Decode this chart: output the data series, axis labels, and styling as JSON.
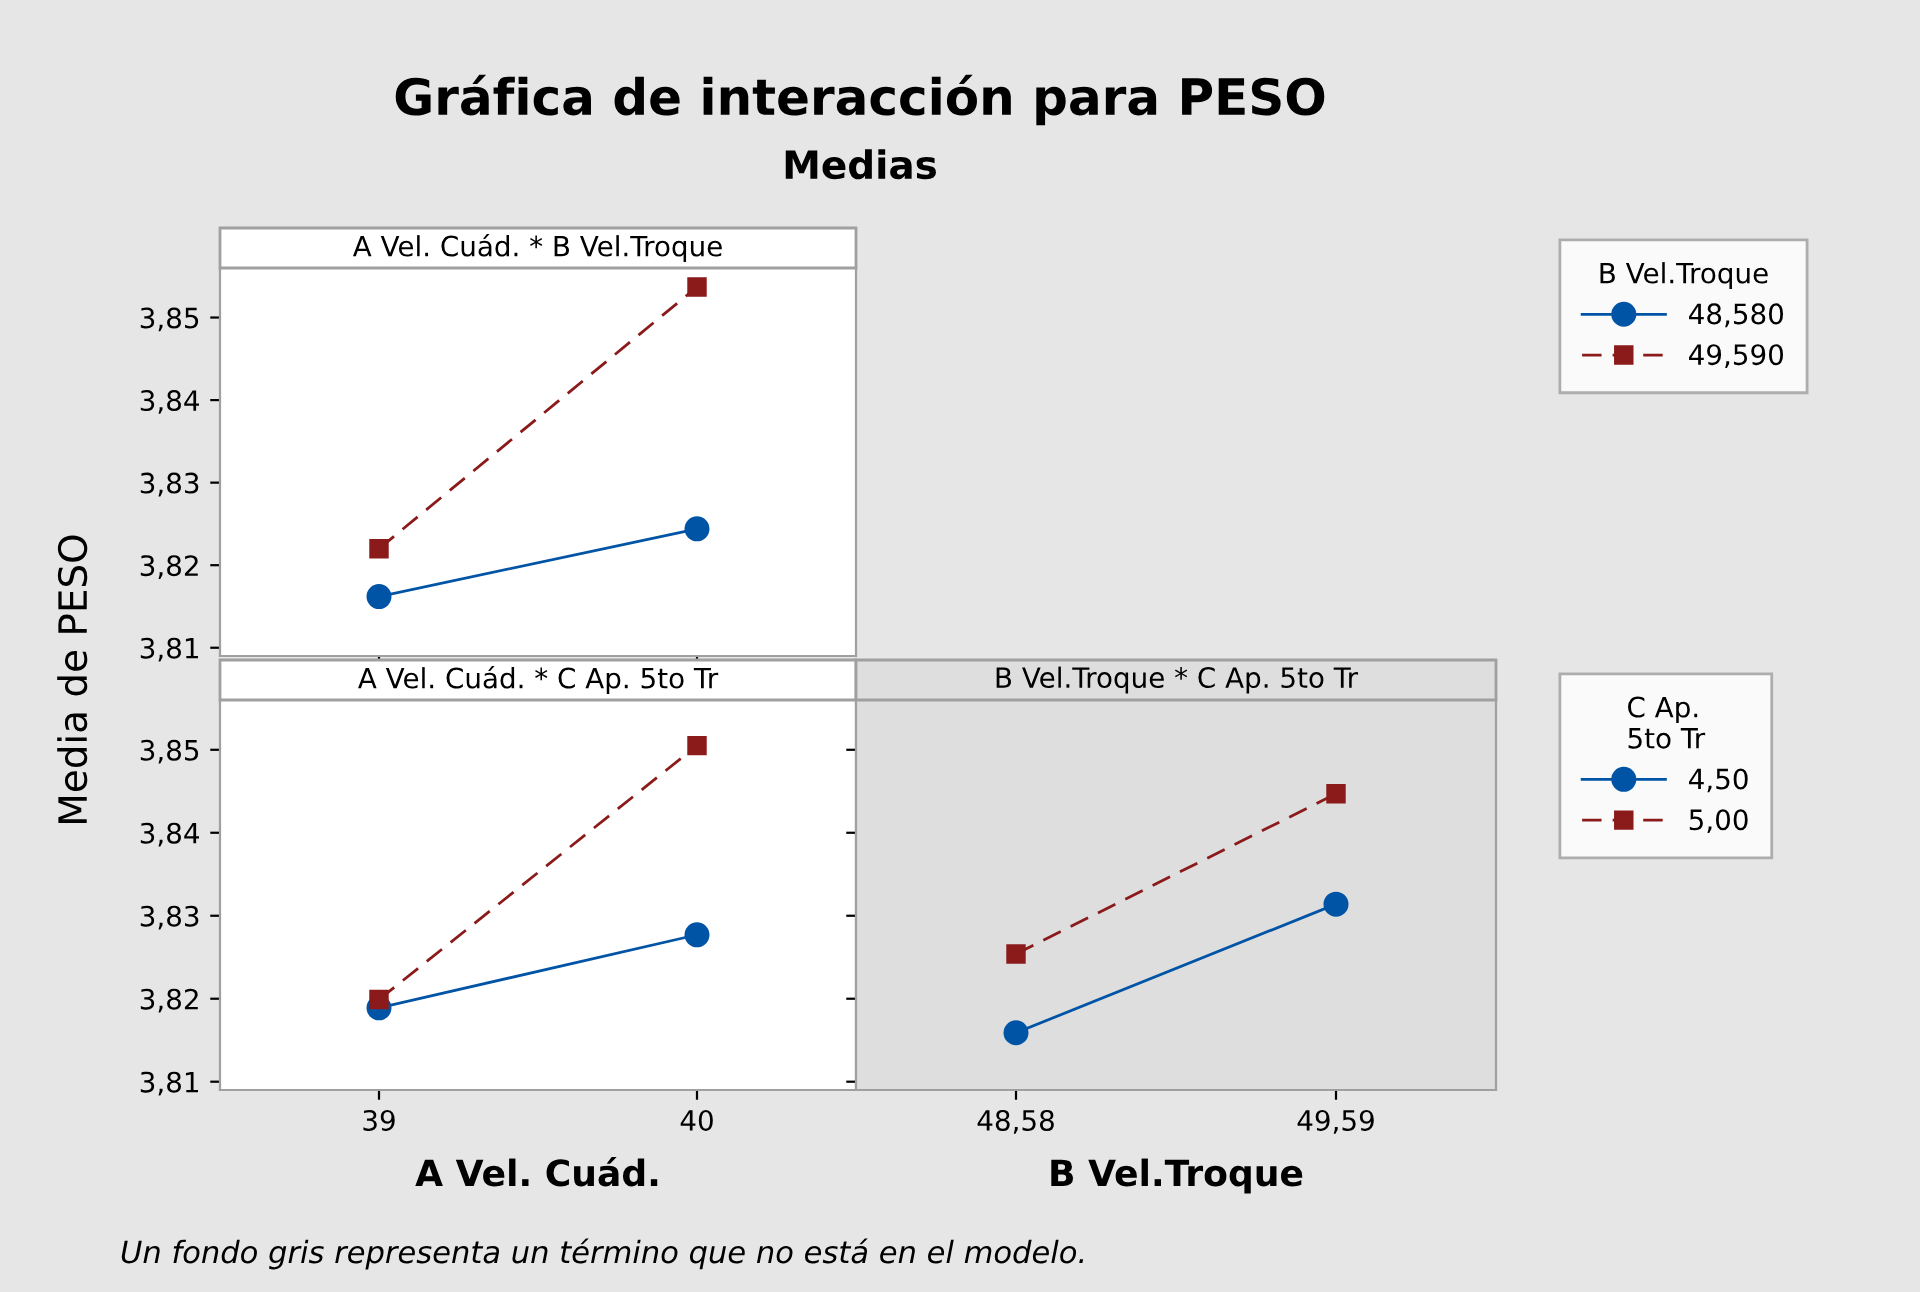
{
  "chart_data": [
    {
      "type": "line",
      "title": "Gráfica de interacción para PESO",
      "subtitle": "Medias",
      "ylabel": "Media de PESO",
      "annotations": [
        "A Vel. Cuád. * B Vel.Troque",
        "Un fondo gris representa un término que no está en el modelo."
      ],
      "categories": [
        "39",
        "40"
      ],
      "ylim": [
        3.809,
        3.856
      ],
      "yticks": [
        {
          "value": 3.81,
          "label": "3,81"
        },
        {
          "value": 3.82,
          "label": "3,82"
        },
        {
          "value": 3.83,
          "label": "3,83"
        },
        {
          "value": 3.84,
          "label": "3,84"
        },
        {
          "value": 3.85,
          "label": "3,85"
        }
      ],
      "tick_labels": "y",
      "legend": "right",
      "legend_title": "B Vel.Troque",
      "grid": false,
      "series": [
        {
          "name": "48,580",
          "color": "#0054a6",
          "marker": "circle",
          "line_style": "solid",
          "values": [
            3.8162,
            3.8244
          ]
        },
        {
          "name": "49,590",
          "color": "#8b1a1a",
          "marker": "square",
          "line_style": "dashed",
          "values": [
            3.822,
            3.8537
          ]
        }
      ]
    },
    {
      "type": "line",
      "xlabel": "A Vel. Cuád.",
      "annotations": [
        "A Vel. Cuád. * C Ap. 5to Tr"
      ],
      "categories": [
        "39",
        "40"
      ],
      "ylim": [
        3.809,
        3.856
      ],
      "yticks": [
        {
          "value": 3.81,
          "label": "3,81"
        },
        {
          "value": 3.82,
          "label": "3,82"
        },
        {
          "value": 3.83,
          "label": "3,83"
        },
        {
          "value": 3.84,
          "label": "3,84"
        },
        {
          "value": 3.85,
          "label": "3,85"
        }
      ],
      "grid": false,
      "series": [
        {
          "color": "#0054a6",
          "marker": "circle",
          "line_style": "solid",
          "values": [
            3.8189,
            3.8277
          ]
        },
        {
          "color": "#8b1a1a",
          "marker": "square",
          "line_style": "dashed",
          "values": [
            3.8199,
            3.8505
          ]
        }
      ]
    },
    {
      "type": "line",
      "xlabel": "B Vel.Troque",
      "annotations": [
        "B Vel.Troque * C Ap. 5to Tr"
      ],
      "categories": [
        "48,58",
        "49,59"
      ],
      "ylim": [
        3.809,
        3.856
      ],
      "yticks": [
        {
          "value": 3.81,
          "label": null
        },
        {
          "value": 3.82,
          "label": null
        },
        {
          "value": 3.83,
          "label": null
        },
        {
          "value": 3.84,
          "label": null
        },
        {
          "value": 3.85,
          "label": null
        }
      ],
      "tick_labels": "x",
      "legend": "right",
      "legend_title": "C Ap.\n5to Tr",
      "grid": false,
      "series": [
        {
          "name": "4,50",
          "color": "#0054a6",
          "marker": "circle",
          "line_style": "solid",
          "values": [
            3.8159,
            3.8314
          ]
        },
        {
          "name": "5,00",
          "color": "#8b1a1a",
          "marker": "square",
          "line_style": "dashed",
          "values": [
            3.8254,
            3.8447
          ]
        }
      ]
    }
  ]
}
